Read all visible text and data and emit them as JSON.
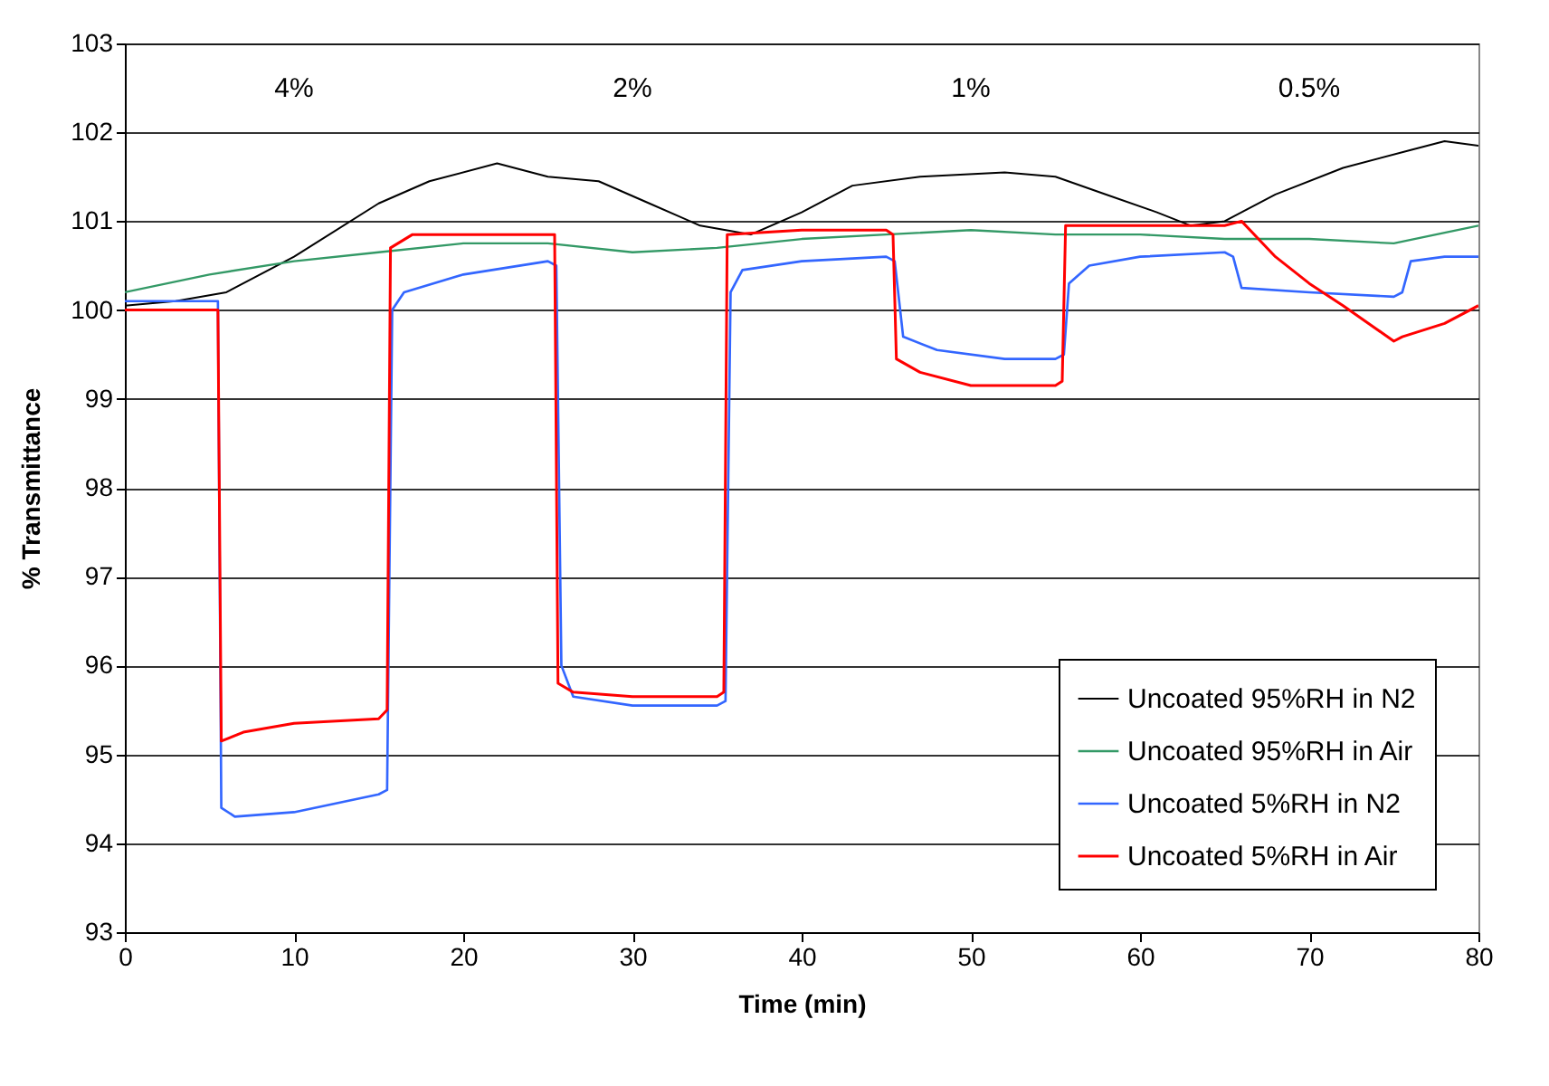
{
  "chart_data": {
    "type": "line",
    "xlabel": "Time (min)",
    "ylabel": "% Transmittance",
    "xlim": [
      0,
      80
    ],
    "xticks": [
      0,
      10,
      20,
      30,
      40,
      50,
      60,
      70,
      80
    ],
    "ylim": [
      93,
      103
    ],
    "yticks": [
      93,
      94,
      95,
      96,
      97,
      98,
      99,
      100,
      101,
      102,
      103
    ],
    "grid": "y",
    "legend": "bottom right",
    "marker": "none",
    "line_style": "solid",
    "annotations": [
      "4%",
      "2%",
      "1%",
      "0.5%"
    ],
    "series": [
      {
        "name": "Uncoated 95%RH in N2",
        "color": "#000000",
        "x": [
          0,
          3,
          6,
          10,
          15,
          18,
          22,
          25,
          28,
          31,
          34,
          37,
          40,
          43,
          47,
          52,
          55,
          58,
          61,
          63,
          65,
          68,
          72,
          76,
          78,
          80
        ],
        "values": [
          100.05,
          100.1,
          100.2,
          100.6,
          101.2,
          101.45,
          101.65,
          101.5,
          101.45,
          101.2,
          100.95,
          100.85,
          101.1,
          101.4,
          101.5,
          101.55,
          101.5,
          101.3,
          101.1,
          100.95,
          101.0,
          101.3,
          101.6,
          101.8,
          101.9,
          101.85
        ]
      },
      {
        "name": "Uncoated 95%RH in Air",
        "color": "#339966",
        "x": [
          0,
          5,
          10,
          15,
          20,
          25,
          30,
          35,
          40,
          45,
          50,
          55,
          60,
          65,
          70,
          75,
          80
        ],
        "values": [
          100.2,
          100.4,
          100.55,
          100.65,
          100.75,
          100.75,
          100.65,
          100.7,
          100.8,
          100.85,
          100.9,
          100.85,
          100.85,
          100.8,
          100.8,
          100.75,
          100.95
        ]
      },
      {
        "name": "Uncoated 5%RH in N2",
        "color": "#3366ff",
        "x": [
          0,
          5.5,
          5.7,
          6.5,
          10,
          15,
          15.5,
          15.8,
          16.5,
          20,
          25,
          25.5,
          25.8,
          26.5,
          30,
          35,
          35.5,
          35.8,
          36.5,
          40,
          45,
          45.5,
          46,
          48,
          52,
          55,
          55.5,
          55.8,
          57,
          60,
          65,
          65.5,
          66,
          70,
          75,
          75.5,
          76,
          78,
          80
        ],
        "values": [
          100.1,
          100.1,
          94.4,
          94.3,
          94.35,
          94.55,
          94.6,
          100,
          100.2,
          100.4,
          100.55,
          100.5,
          96,
          95.65,
          95.55,
          95.55,
          95.6,
          100.2,
          100.45,
          100.55,
          100.6,
          100.55,
          99.7,
          99.55,
          99.45,
          99.45,
          99.5,
          100.3,
          100.5,
          100.6,
          100.65,
          100.6,
          100.25,
          100.2,
          100.15,
          100.2,
          100.55,
          100.6,
          100.6
        ]
      },
      {
        "name": "Uncoated  5%RH in Air",
        "color": "#ff0000",
        "x": [
          0,
          5.5,
          5.7,
          7,
          10,
          15,
          15.5,
          15.7,
          17,
          20,
          25,
          25.4,
          25.6,
          26.5,
          30,
          35,
          35.4,
          35.6,
          40,
          45,
          45.4,
          45.6,
          47,
          50,
          55,
          55.4,
          55.6,
          60,
          65,
          66,
          68,
          70,
          72,
          75,
          75.5,
          78,
          80
        ],
        "values": [
          100,
          100,
          95.15,
          95.25,
          95.35,
          95.4,
          95.5,
          100.7,
          100.85,
          100.85,
          100.85,
          100.85,
          95.8,
          95.7,
          95.65,
          95.65,
          95.7,
          100.85,
          100.9,
          100.9,
          100.85,
          99.45,
          99.3,
          99.15,
          99.15,
          99.2,
          100.95,
          100.95,
          100.95,
          101,
          100.6,
          100.3,
          100.05,
          99.65,
          99.7,
          99.85,
          100.05
        ]
      }
    ]
  }
}
